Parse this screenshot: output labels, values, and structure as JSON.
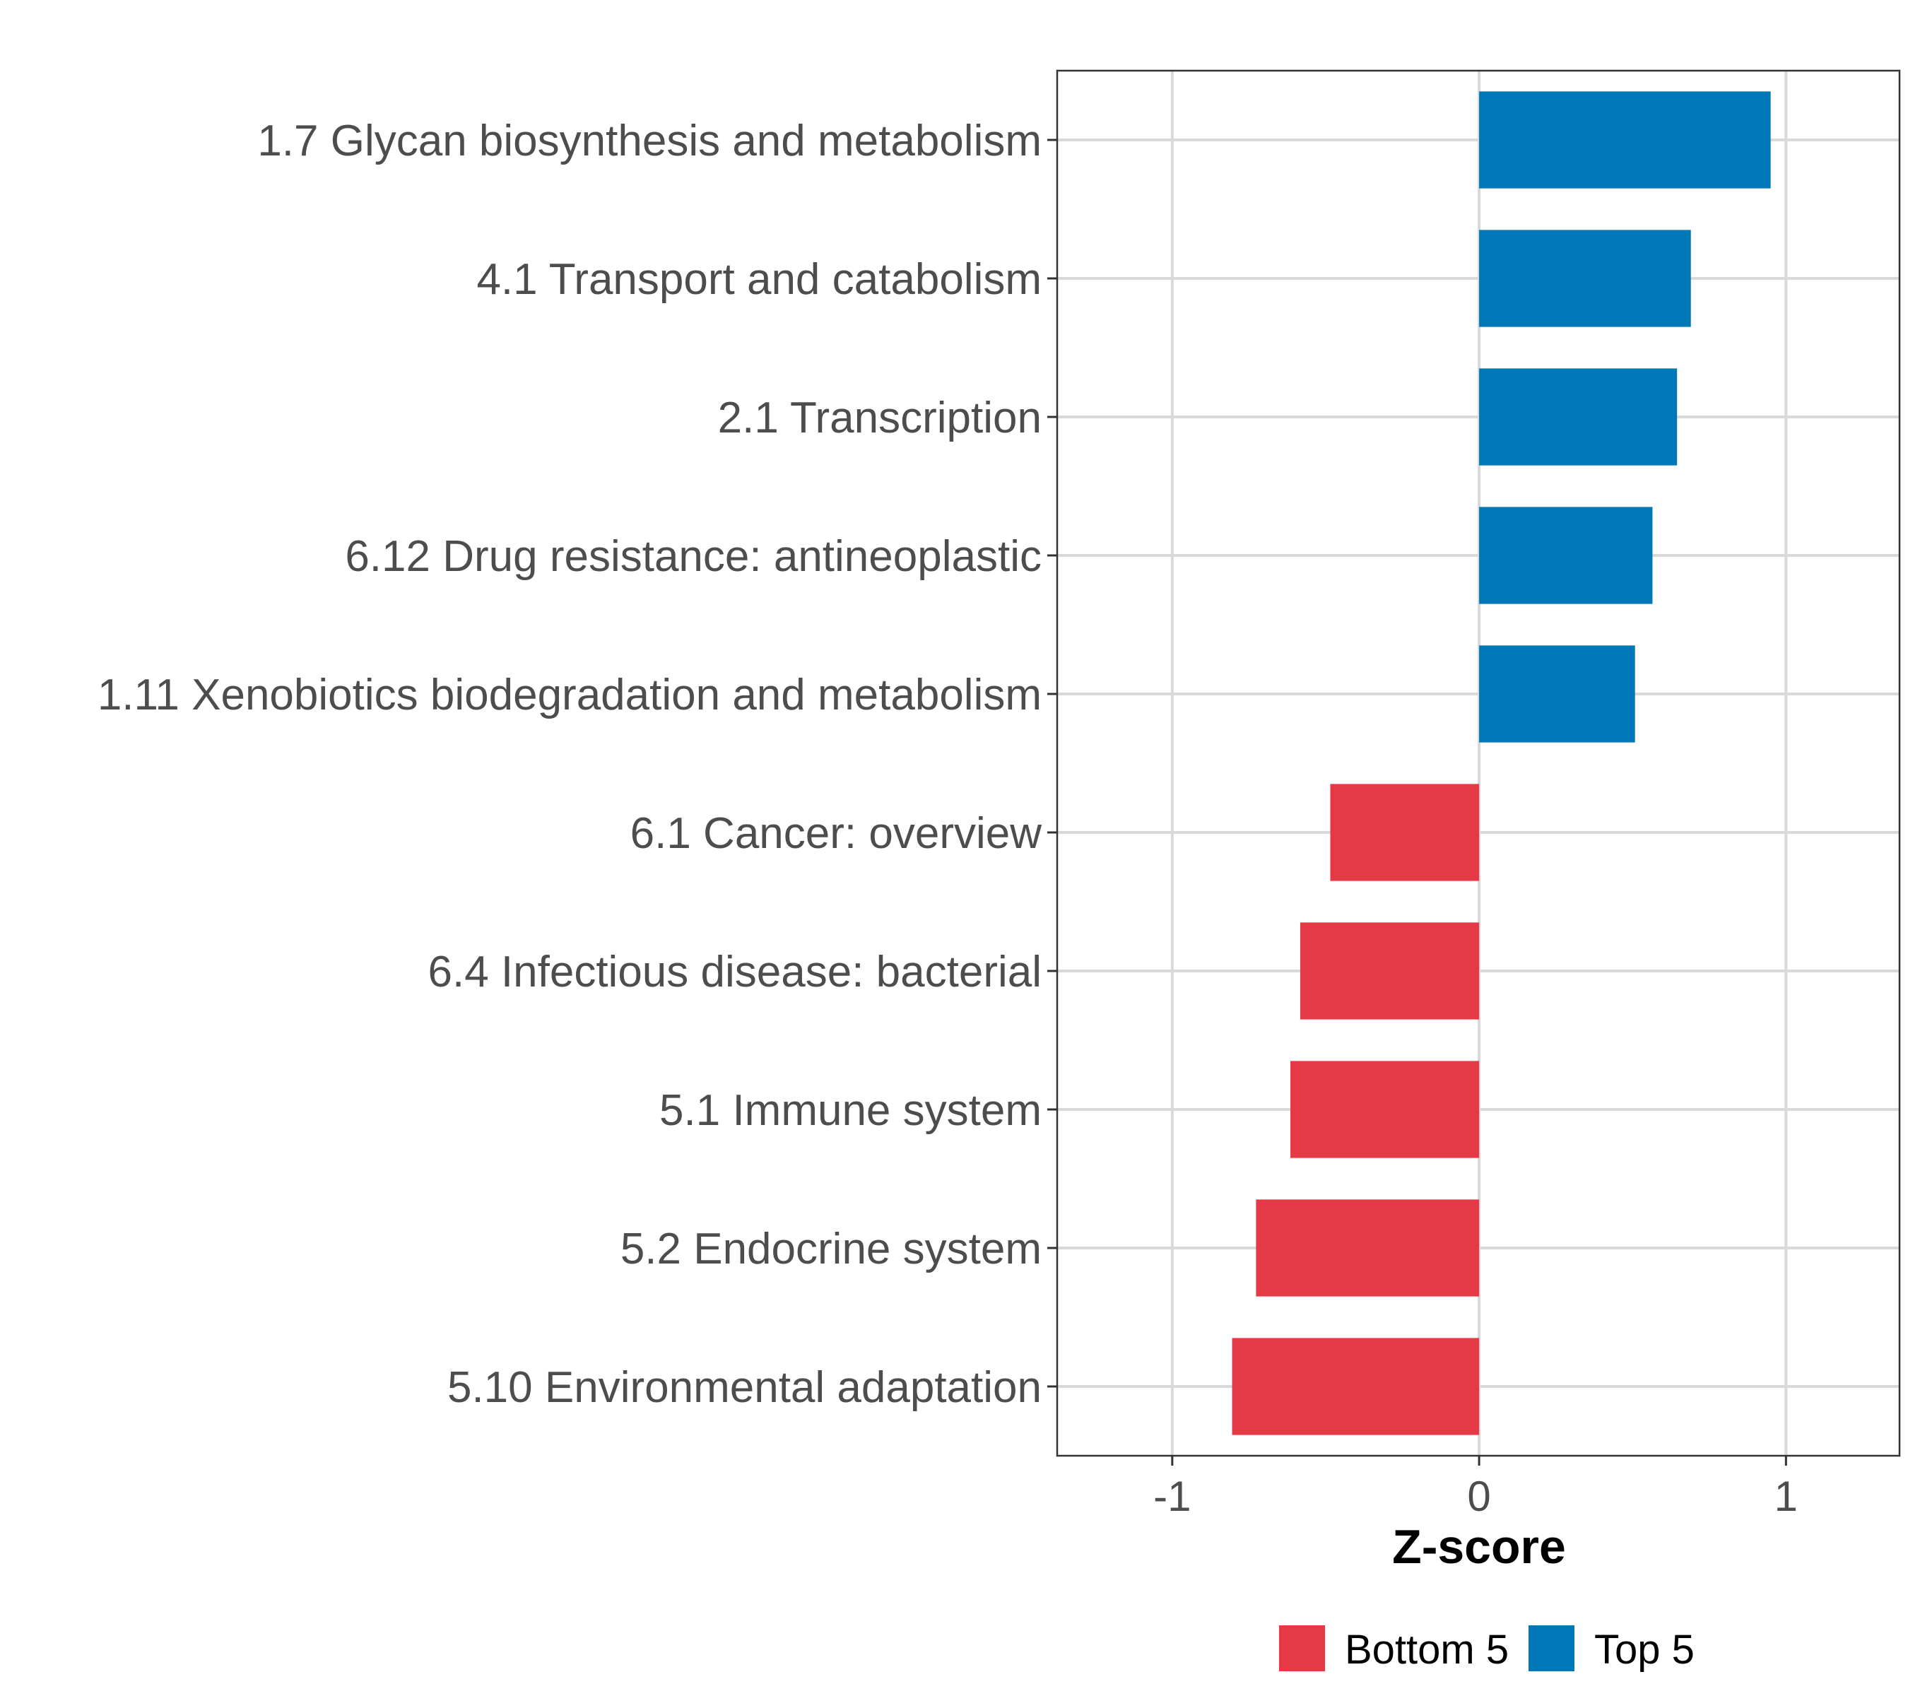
{
  "chart_data": {
    "type": "bar",
    "orientation": "horizontal",
    "categories": [
      "1.7 Glycan biosynthesis and metabolism",
      "4.1 Transport and catabolism",
      "2.1 Transcription",
      "6.12 Drug resistance: antineoplastic",
      "1.11 Xenobiotics biodegradation and metabolism",
      "6.1 Cancer: overview",
      "6.4 Infectious disease: bacterial",
      "5.1 Immune system",
      "5.2 Endocrine system",
      "5.10 Environmental adaptation"
    ],
    "values": [
      0.95,
      0.69,
      0.645,
      0.565,
      0.508,
      -0.485,
      -0.583,
      -0.615,
      -0.727,
      -0.805
    ],
    "groups": [
      "Top 5",
      "Top 5",
      "Top 5",
      "Top 5",
      "Top 5",
      "Bottom 5",
      "Bottom 5",
      "Bottom 5",
      "Bottom 5",
      "Bottom 5"
    ],
    "xlabel": "Z-score",
    "ylabel": "",
    "xlim": [
      -1.375,
      1.37
    ],
    "xticks": [
      -1,
      0,
      1
    ],
    "xtick_labels": [
      "-1",
      "0",
      "1"
    ],
    "grid": true,
    "legend": {
      "placement": "bottom",
      "entries": [
        {
          "label": "Bottom 5",
          "color": "#E63946"
        },
        {
          "label": "Top 5",
          "color": "#0077B6"
        }
      ]
    }
  },
  "colors": {
    "Top 5": "#0077B6",
    "Bottom 5": "#E63946",
    "grid": "#d9d9d9"
  }
}
